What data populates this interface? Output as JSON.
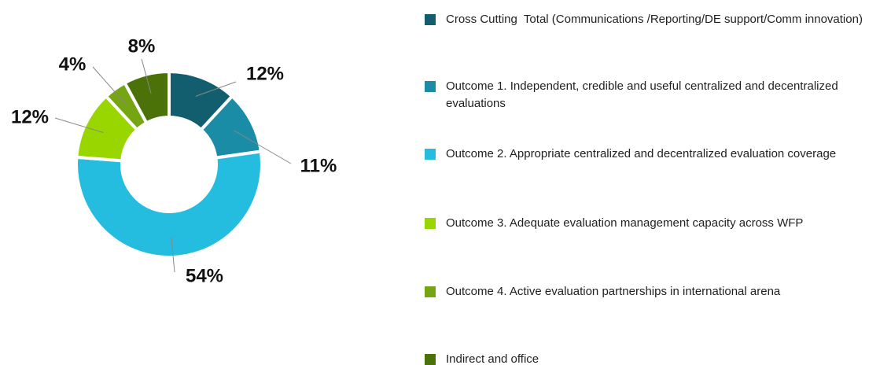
{
  "chart_data": {
    "type": "donut",
    "categories": [
      "Cross Cutting  Total (Communications /Reporting/DE support/Comm innovation)",
      "Outcome 1. Independent, credible and useful centralized and decentralized evaluations",
      "Outcome 2. Appropriate centralized and decentralized evaluation coverage",
      "Outcome 3. Adequate evaluation management capacity across WFP",
      "Outcome 4. Active evaluation partnerships in international arena",
      "Indirect and office"
    ],
    "values": [
      12,
      11,
      54,
      12,
      4,
      8
    ],
    "value_labels": [
      "12%",
      "11%",
      "54%",
      "12%",
      "4%",
      "8%"
    ],
    "colors": [
      "#135e6e",
      "#1a8ca5",
      "#24bde0",
      "#99d600",
      "#76a513",
      "#4a7208"
    ]
  }
}
